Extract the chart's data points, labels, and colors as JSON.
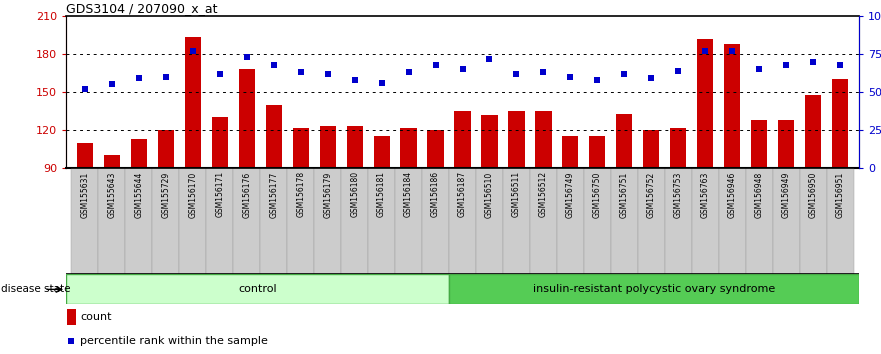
{
  "title": "GDS3104 / 207090_x_at",
  "samples": [
    "GSM155631",
    "GSM155643",
    "GSM155644",
    "GSM155729",
    "GSM156170",
    "GSM156171",
    "GSM156176",
    "GSM156177",
    "GSM156178",
    "GSM156179",
    "GSM156180",
    "GSM156181",
    "GSM156184",
    "GSM156186",
    "GSM156187",
    "GSM156510",
    "GSM156511",
    "GSM156512",
    "GSM156749",
    "GSM156750",
    "GSM156751",
    "GSM156752",
    "GSM156753",
    "GSM156763",
    "GSM156946",
    "GSM156948",
    "GSM156949",
    "GSM156950",
    "GSM156951"
  ],
  "bar_values": [
    110,
    100,
    113,
    120,
    193,
    130,
    168,
    140,
    122,
    123,
    123,
    115,
    122,
    120,
    135,
    132,
    135,
    135,
    115,
    115,
    133,
    120,
    122,
    192,
    188,
    128,
    128,
    148,
    160
  ],
  "percentile_values": [
    52,
    55,
    59,
    60,
    77,
    62,
    73,
    68,
    63,
    62,
    58,
    56,
    63,
    68,
    65,
    72,
    62,
    63,
    60,
    58,
    62,
    59,
    64,
    77,
    77,
    65,
    68,
    70,
    68
  ],
  "control_count": 14,
  "ylim_left": [
    90,
    210
  ],
  "ylim_right": [
    0,
    100
  ],
  "yticks_left": [
    90,
    120,
    150,
    180,
    210
  ],
  "yticks_right": [
    0,
    25,
    50,
    75,
    100
  ],
  "ytick_labels_left": [
    "90",
    "120",
    "150",
    "180",
    "210"
  ],
  "ytick_labels_right": [
    "0",
    "25",
    "50",
    "75",
    "100%"
  ],
  "bar_color": "#cc0000",
  "point_color": "#0000cc",
  "control_bg": "#ccffcc",
  "disease_bg": "#55cc55",
  "label_bg": "#cccccc",
  "control_label": "control",
  "disease_label": "insulin-resistant polycystic ovary syndrome",
  "disease_state_label": "disease state",
  "legend_count": "count",
  "legend_percentile": "percentile rank within the sample",
  "grid_dotted_at": [
    120,
    150,
    180
  ]
}
